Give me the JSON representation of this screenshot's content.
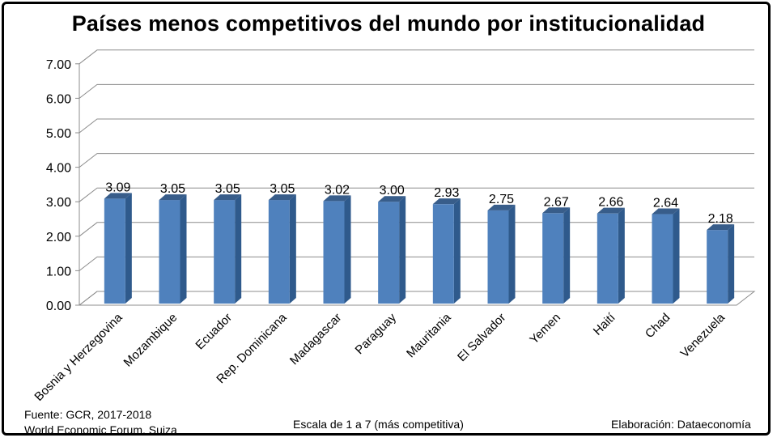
{
  "chart_data": {
    "type": "bar",
    "title": "Países menos competitivos del mundo por institucionalidad",
    "categories": [
      "Bosnia y Herzegovina",
      "Mozambique",
      "Ecuador",
      "Rep. Dominicana",
      "Madagascar",
      "Paraguay",
      "Mauritania",
      "El Salvador",
      "Yemen",
      "Haití",
      "Chad",
      "Venezuela"
    ],
    "values": [
      3.09,
      3.05,
      3.05,
      3.05,
      3.02,
      3.0,
      2.93,
      2.75,
      2.67,
      2.66,
      2.64,
      2.18
    ],
    "value_labels": [
      "3.09",
      "3.05",
      "3.05",
      "3.05",
      "3.02",
      "3.00",
      "2.93",
      "2.75",
      "2.67",
      "2.66",
      "2.64",
      "2.18"
    ],
    "y_ticks": [
      "0.00",
      "1.00",
      "2.00",
      "3.00",
      "4.00",
      "5.00",
      "6.00",
      "7.00"
    ],
    "ylim": [
      0,
      7
    ],
    "grid": true,
    "colors": {
      "bar_front": "#4f81bd",
      "bar_side": "#2f5a8c",
      "bar_top": "#385d8a",
      "grid": "#8c8c8c"
    }
  },
  "footer": {
    "source_line1": "Fuente:  GCR, 2017-2018",
    "source_line2": "World Economic Forum, Suiza",
    "scale_note": "Escala de 1 a 7 (más competitiva)",
    "credit": "Elaboración: Dataeconomía"
  }
}
